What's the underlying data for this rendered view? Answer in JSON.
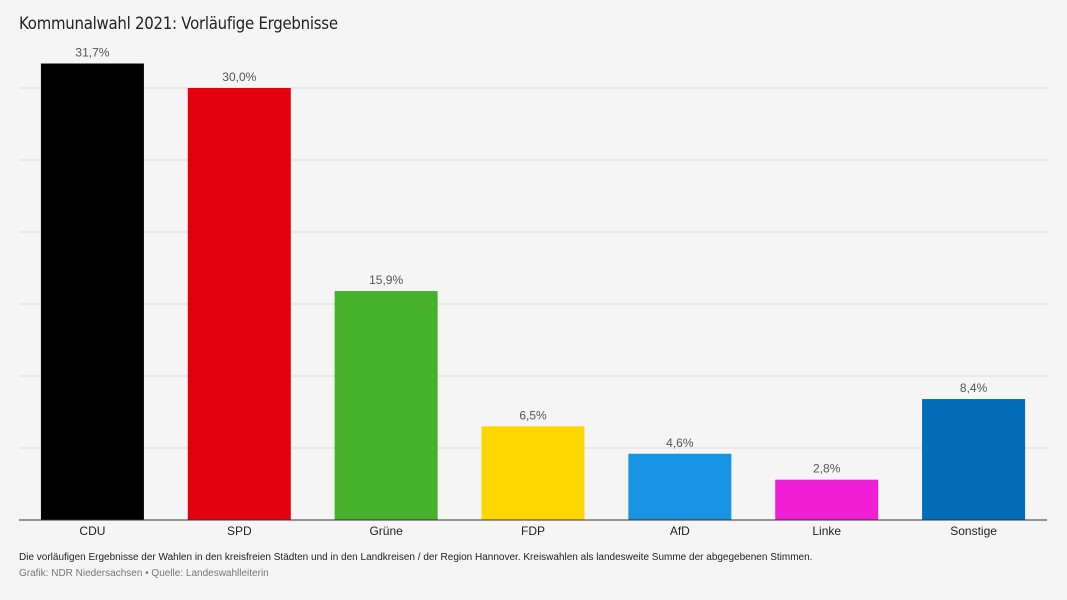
{
  "chart_data": {
    "type": "bar",
    "title": "Kommunalwahl 2021: Vorläufige Ergebnisse",
    "categories": [
      "CDU",
      "SPD",
      "Grüne",
      "FDP",
      "AfD",
      "Linke",
      "Sonstige"
    ],
    "values": [
      31.7,
      30.0,
      15.9,
      6.5,
      4.6,
      2.8,
      8.4
    ],
    "value_labels": [
      "31,7%",
      "30,0%",
      "15,9%",
      "6,5%",
      "4,6%",
      "2,8%",
      "8,4%"
    ],
    "colors": [
      "#000000",
      "#e3000f",
      "#46b12b",
      "#ffd700",
      "#1794e3",
      "#f01fd5",
      "#006cb7"
    ],
    "xlabel": "",
    "ylabel": "",
    "ylim": [
      0,
      30
    ],
    "grid": true,
    "legend": "none"
  },
  "footer": {
    "note": "Die vorläufigen Ergebnisse der Wahlen in den kreisfreien Städten und in den Landkreisen / der Region Hannover. Kreiswahlen als landesweite Summe der abgegebenen Stimmen.",
    "source": "Grafik: NDR Niedersachsen • Quelle: Landeswahlleiterin"
  }
}
